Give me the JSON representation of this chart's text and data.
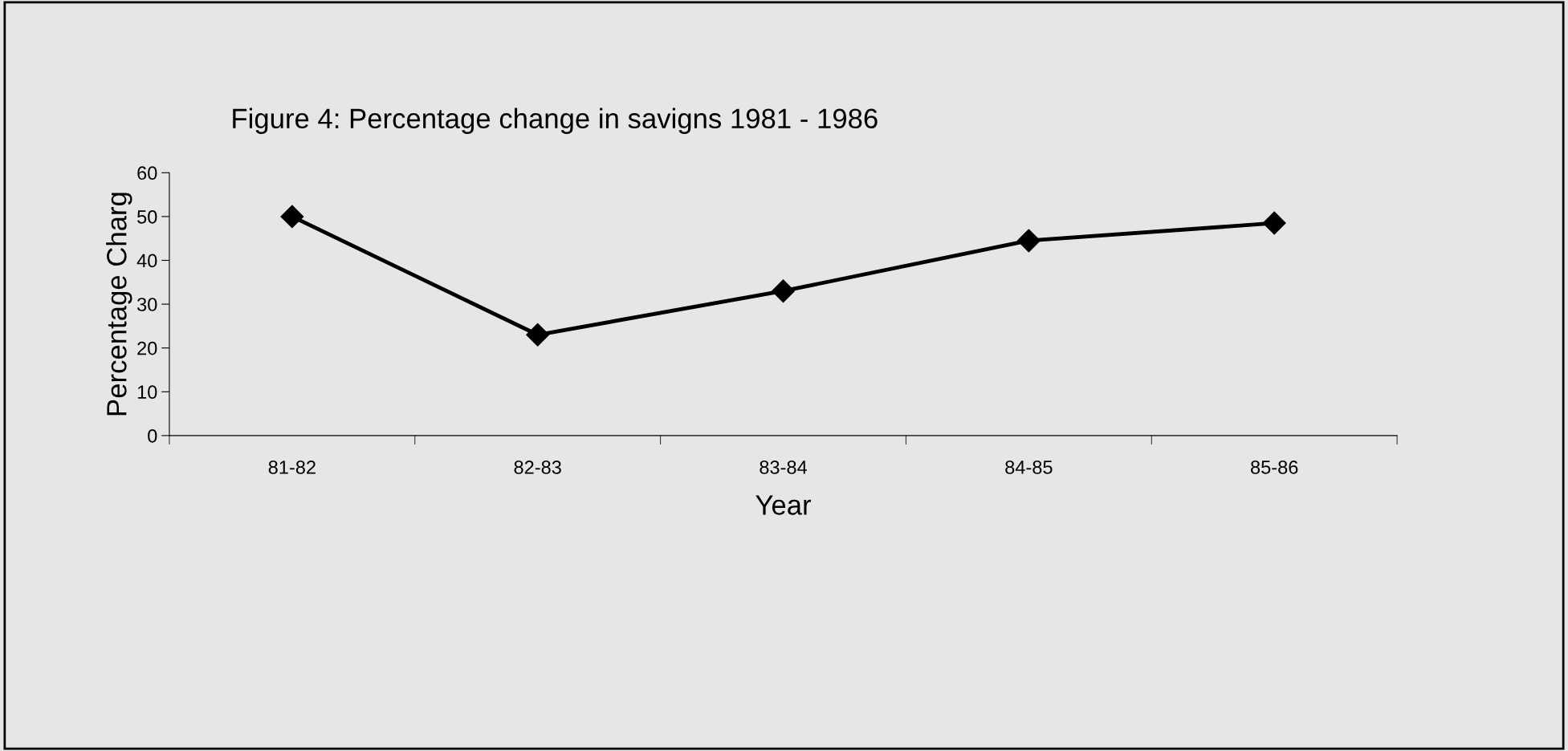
{
  "chart_data": {
    "type": "line",
    "title": "Figure 4: Percentage change in savigns 1981 - 1986",
    "xlabel": "Year",
    "ylabel": "Percentage Charg",
    "categories": [
      "81-82",
      "82-83",
      "83-84",
      "84-85",
      "85-86"
    ],
    "series": [
      {
        "color": "#000000",
        "values": [
          50,
          23,
          33,
          44.5,
          48.5
        ]
      }
    ],
    "ylim": [
      0,
      60
    ],
    "yticks": [
      0,
      10,
      20,
      30,
      40,
      50,
      60
    ],
    "grid": false,
    "legend": false,
    "marker": "diamond",
    "line_style": "solid"
  }
}
